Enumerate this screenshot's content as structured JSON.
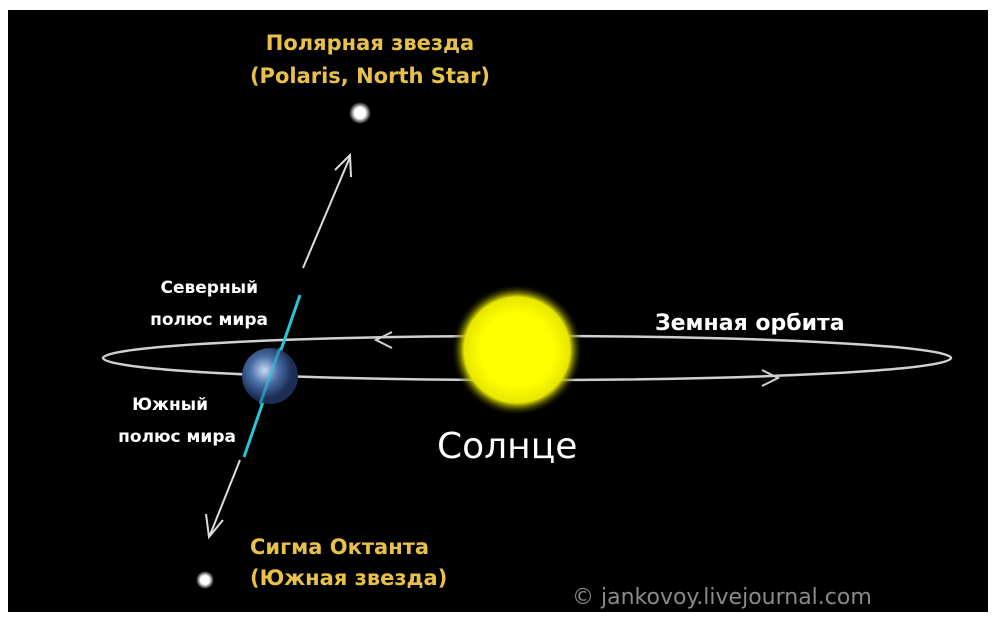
{
  "labels": {
    "polaris_ru": "Полярная звезда",
    "polaris_en": "(Polaris, North Star)",
    "north_pole_1": "Северный",
    "north_pole_2": "полюс мира",
    "south_pole_1": "Южный",
    "south_pole_2": "полюс мира",
    "orbit": "Земная орбита",
    "sun": "Солнце",
    "south_star_1": "Сигма Октанта",
    "south_star_2": "(Южная звезда)",
    "watermark": "© jankovoy.livejournal.com"
  }
}
